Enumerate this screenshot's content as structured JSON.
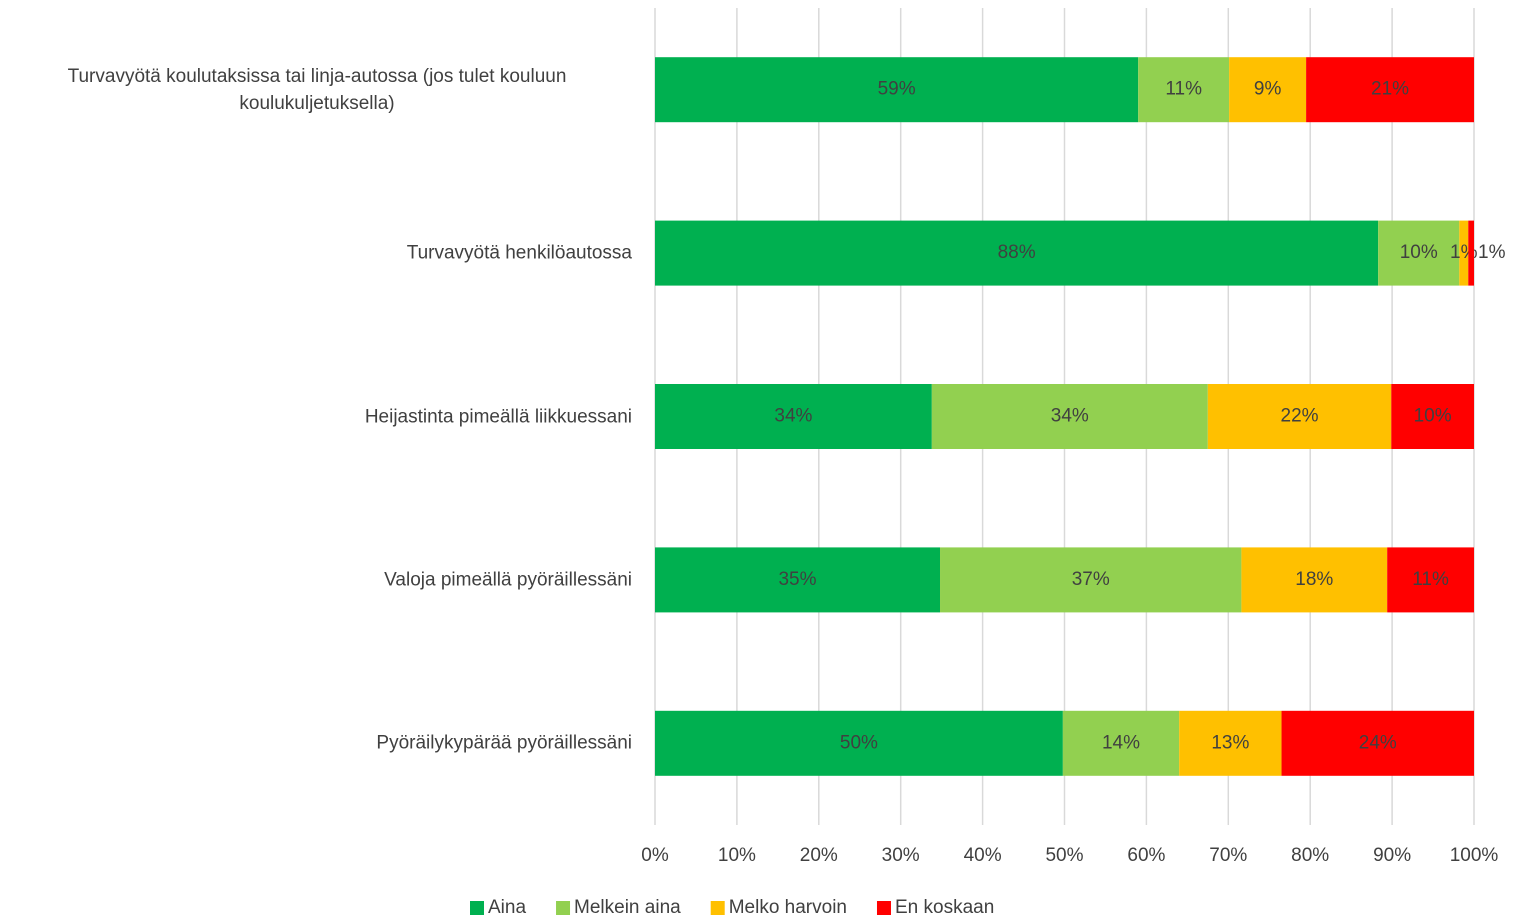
{
  "chart_data": {
    "type": "stacked_bar_horizontal",
    "categories": [
      "Turvavyötä koulutaksissa tai linja-autossa (jos tulet kouluun koulukuljetuksella)",
      "Turvavyötä henkilöautossa",
      "Heijastinta pimeällä liikkuessani",
      "Valoja pimeällä pyöräillessäni",
      "Pyöräilykypärää pyöräillessäni"
    ],
    "series": [
      {
        "name": "Aina",
        "color": "#00b050",
        "values": [
          59.0,
          88.3,
          33.8,
          34.8,
          49.8
        ],
        "value_labels": [
          "59%",
          "88%",
          "34%",
          "35%",
          "50%"
        ]
      },
      {
        "name": "Melkein aina",
        "color": "#92d050",
        "values": [
          11.1,
          9.9,
          33.7,
          36.8,
          14.2
        ],
        "value_labels": [
          "11%",
          "10%",
          "34%",
          "37%",
          "14%"
        ]
      },
      {
        "name": "Melko harvoin",
        "color": "#ffc000",
        "values": [
          9.4,
          1.1,
          22.4,
          17.8,
          12.5
        ],
        "value_labels": [
          "9%",
          "1%",
          "22%",
          "18%",
          "13%"
        ]
      },
      {
        "name": "En koskaan",
        "color": "#ff0000",
        "values": [
          20.5,
          0.7,
          10.1,
          10.6,
          23.5
        ],
        "value_labels": [
          "21%",
          "1%",
          "10%",
          "11%",
          "24%"
        ]
      }
    ],
    "xlim": [
      0,
      100
    ],
    "xticks": [
      {
        "value": 0,
        "label": "0%"
      },
      {
        "value": 10,
        "label": "10%"
      },
      {
        "value": 20,
        "label": "20%"
      },
      {
        "value": 30,
        "label": "30%"
      },
      {
        "value": 40,
        "label": "40%"
      },
      {
        "value": 50,
        "label": "50%"
      },
      {
        "value": 60,
        "label": "60%"
      },
      {
        "value": 70,
        "label": "70%"
      },
      {
        "value": 80,
        "label": "80%"
      },
      {
        "value": 90,
        "label": "90%"
      },
      {
        "value": 100,
        "label": "100%"
      }
    ],
    "grid": true,
    "legend": "bottom"
  }
}
